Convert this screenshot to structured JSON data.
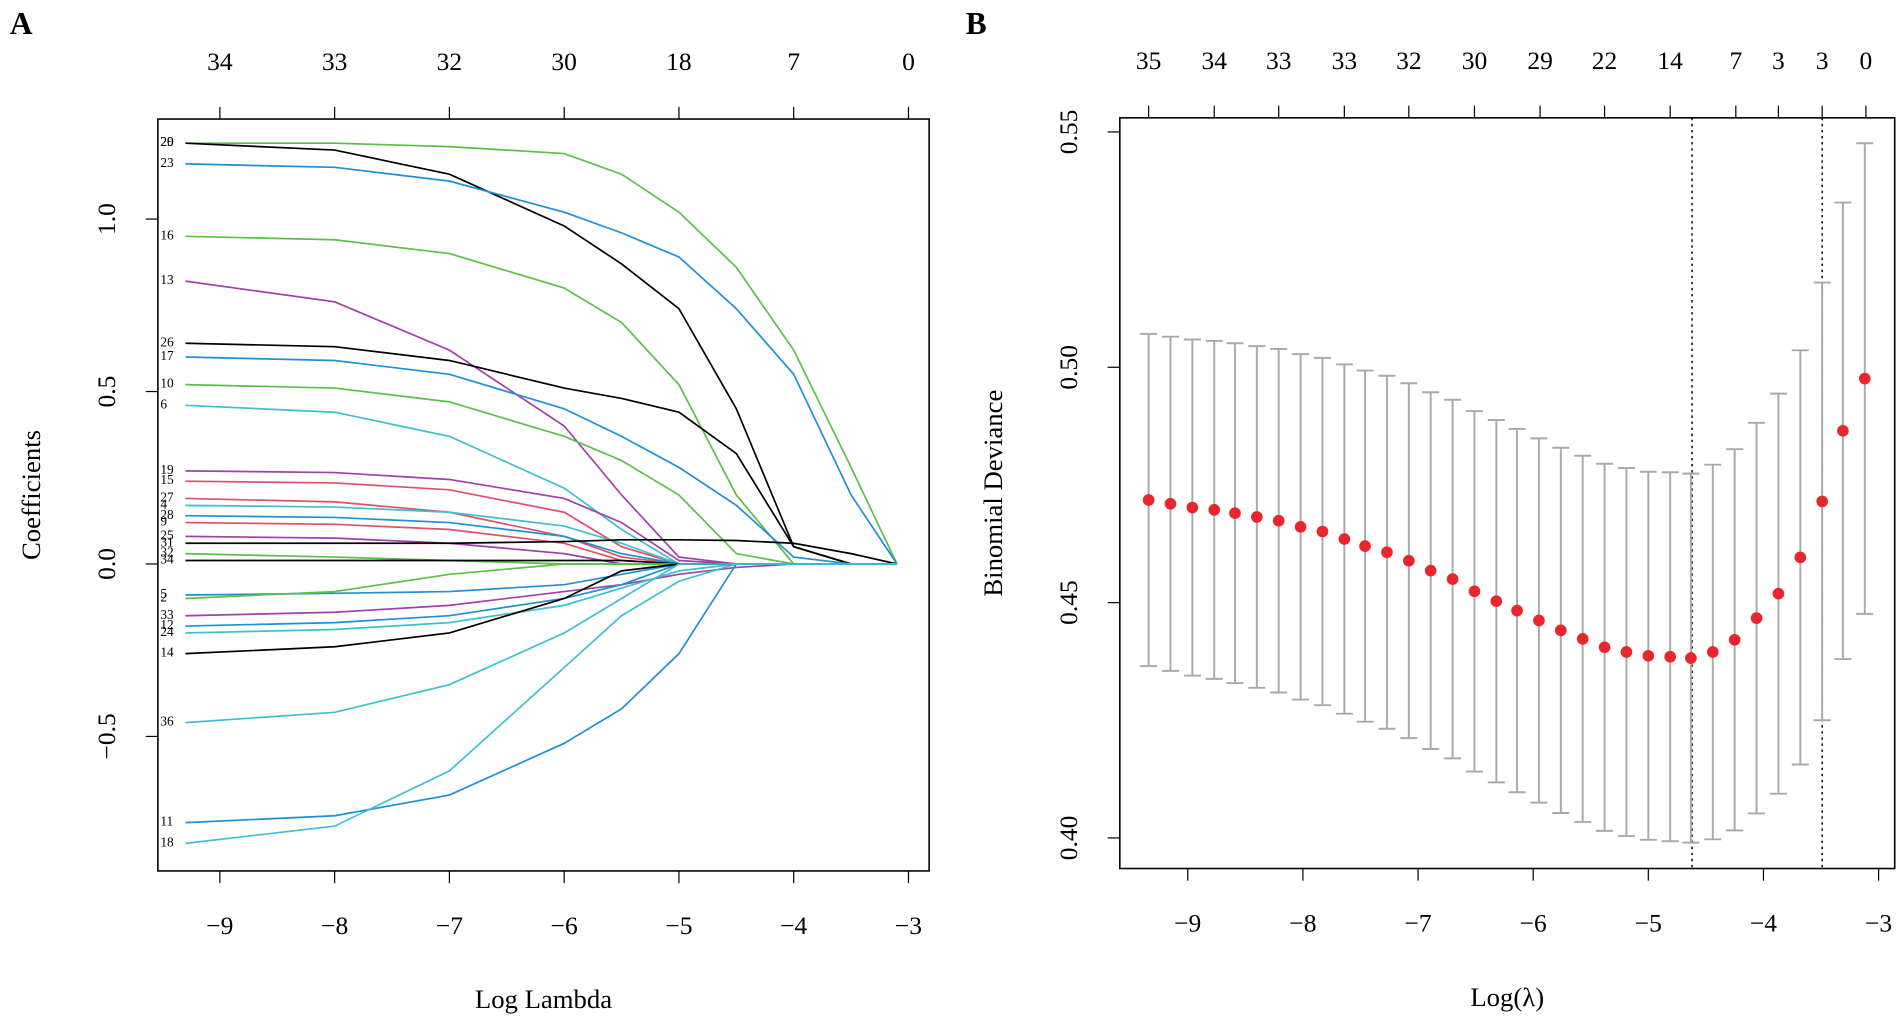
{
  "chart_data": [
    {
      "type": "line",
      "panel_label": "A",
      "xlabel": "Log Lambda",
      "ylabel": "Coefficients",
      "xlim": [
        -9.54,
        -2.82
      ],
      "ylim": [
        -0.89,
        1.29
      ],
      "xticks": [
        {
          "value": -9,
          "label": "−9"
        },
        {
          "value": -8,
          "label": "−8"
        },
        {
          "value": -7,
          "label": "−7"
        },
        {
          "value": -6,
          "label": "−6"
        },
        {
          "value": -5,
          "label": "−5"
        },
        {
          "value": -4,
          "label": "−4"
        },
        {
          "value": -3,
          "label": "−3"
        }
      ],
      "yticks": [
        {
          "value": -0.5,
          "label": "−0.5"
        },
        {
          "value": 0,
          "label": "0.0"
        },
        {
          "value": 0.5,
          "label": "0.5"
        },
        {
          "value": 1,
          "label": "1.0"
        }
      ],
      "top_xticks": [
        {
          "value": -9,
          "label": "34"
        },
        {
          "value": -8,
          "label": "33"
        },
        {
          "value": -7,
          "label": "32"
        },
        {
          "value": -6,
          "label": "30"
        },
        {
          "value": -5,
          "label": "18"
        },
        {
          "value": -4,
          "label": "7"
        },
        {
          "value": -3,
          "label": "0"
        }
      ],
      "x": [
        -9.3,
        -8,
        -7,
        -6,
        -5.5,
        -5,
        -4.5,
        -4,
        -3.5,
        -3.1
      ],
      "series": [
        {
          "name": "20",
          "color": "#5cbf4a",
          "values": [
            1.22,
            1.22,
            1.21,
            1.19,
            1.13,
            1.02,
            0.86,
            0.62,
            0.28,
            0
          ]
        },
        {
          "name": "29",
          "color": "#000000",
          "values": [
            1.22,
            1.2,
            1.13,
            0.98,
            0.87,
            0.74,
            0.45,
            0.05,
            0,
            0
          ]
        },
        {
          "name": "23",
          "color": "#1f8fd6",
          "values": [
            1.16,
            1.15,
            1.11,
            1.02,
            0.96,
            0.89,
            0.74,
            0.55,
            0.2,
            0
          ]
        },
        {
          "name": "16",
          "color": "#5cbf4a",
          "values": [
            0.95,
            0.94,
            0.9,
            0.8,
            0.7,
            0.52,
            0.2,
            0,
            0,
            0
          ]
        },
        {
          "name": "13",
          "color": "#a040a8",
          "values": [
            0.82,
            0.76,
            0.62,
            0.4,
            0.2,
            0.02,
            0,
            0,
            0,
            0
          ]
        },
        {
          "name": "26",
          "color": "#000000",
          "values": [
            0.64,
            0.63,
            0.59,
            0.51,
            0.48,
            0.44,
            0.32,
            0.05,
            0,
            0
          ]
        },
        {
          "name": "17",
          "color": "#1f8fd6",
          "values": [
            0.6,
            0.59,
            0.55,
            0.45,
            0.37,
            0.28,
            0.17,
            0.02,
            0,
            0
          ]
        },
        {
          "name": "10",
          "color": "#5cbf4a",
          "values": [
            0.52,
            0.51,
            0.47,
            0.37,
            0.3,
            0.2,
            0.03,
            0,
            0,
            0
          ]
        },
        {
          "name": "6",
          "color": "#3fbfcf",
          "values": [
            0.46,
            0.44,
            0.37,
            0.22,
            0.1,
            0,
            0,
            0,
            0,
            0
          ]
        },
        {
          "name": "19",
          "color": "#a040a8",
          "values": [
            0.27,
            0.265,
            0.245,
            0.19,
            0.12,
            0.01,
            0,
            0,
            0,
            0
          ]
        },
        {
          "name": "15",
          "color": "#e0506a",
          "values": [
            0.24,
            0.235,
            0.215,
            0.15,
            0.05,
            0,
            0,
            0,
            0,
            0
          ]
        },
        {
          "name": "27",
          "color": "#e0506a",
          "values": [
            0.19,
            0.18,
            0.15,
            0.08,
            0.02,
            0,
            0,
            0,
            0,
            0
          ]
        },
        {
          "name": "4",
          "color": "#3fbfcf",
          "values": [
            0.17,
            0.165,
            0.15,
            0.11,
            0.06,
            0,
            0,
            0,
            0,
            0
          ]
        },
        {
          "name": "28",
          "color": "#1f8fd6",
          "values": [
            0.14,
            0.135,
            0.12,
            0.08,
            0.03,
            0,
            0,
            0,
            0,
            0
          ]
        },
        {
          "name": "9",
          "color": "#e0506a",
          "values": [
            0.12,
            0.115,
            0.1,
            0.06,
            0.01,
            0,
            0,
            0,
            0,
            0
          ]
        },
        {
          "name": "25",
          "color": "#a040a8",
          "values": [
            0.08,
            0.075,
            0.06,
            0.03,
            0,
            0,
            0,
            0,
            0,
            0
          ]
        },
        {
          "name": "31",
          "color": "#000000",
          "values": [
            0.06,
            0.06,
            0.06,
            0.065,
            0.07,
            0.07,
            0.068,
            0.06,
            0.03,
            0
          ]
        },
        {
          "name": "32",
          "color": "#5cbf4a",
          "values": [
            0.03,
            0.02,
            0.01,
            0,
            0,
            0,
            0,
            0,
            0,
            0
          ]
        },
        {
          "name": "34",
          "color": "#000000",
          "values": [
            0.01,
            0.01,
            0.01,
            0.01,
            0.01,
            0,
            0,
            0,
            0,
            0
          ]
        },
        {
          "name": "5",
          "color": "#1f8fd6",
          "values": [
            -0.09,
            -0.085,
            -0.08,
            -0.06,
            -0.03,
            0,
            0,
            0,
            0,
            0
          ]
        },
        {
          "name": "2",
          "color": "#5cbf4a",
          "values": [
            -0.1,
            -0.08,
            -0.03,
            0,
            0,
            0,
            0,
            0,
            0,
            0
          ]
        },
        {
          "name": "33",
          "color": "#a040a8",
          "values": [
            -0.15,
            -0.14,
            -0.12,
            -0.08,
            -0.06,
            -0.03,
            -0.01,
            0,
            0,
            0
          ]
        },
        {
          "name": "12",
          "color": "#1f8fd6",
          "values": [
            -0.18,
            -0.17,
            -0.15,
            -0.1,
            -0.06,
            0,
            0,
            0,
            0,
            0
          ]
        },
        {
          "name": "24",
          "color": "#3fbfcf",
          "values": [
            -0.2,
            -0.19,
            -0.17,
            -0.12,
            -0.07,
            -0.02,
            0,
            0,
            0,
            0
          ]
        },
        {
          "name": "14",
          "color": "#000000",
          "values": [
            -0.26,
            -0.24,
            -0.2,
            -0.1,
            -0.02,
            0,
            0,
            0,
            0,
            0
          ]
        },
        {
          "name": "36",
          "color": "#3fbfcf",
          "values": [
            -0.46,
            -0.43,
            -0.35,
            -0.2,
            -0.1,
            0,
            0,
            0,
            0,
            0
          ]
        },
        {
          "name": "11",
          "color": "#1f8fd6",
          "values": [
            -0.75,
            -0.73,
            -0.67,
            -0.52,
            -0.42,
            -0.26,
            0,
            0,
            0,
            0
          ]
        },
        {
          "name": "18",
          "color": "#3fbfcf",
          "values": [
            -0.81,
            -0.76,
            -0.6,
            -0.3,
            -0.15,
            -0.05,
            0,
            0,
            0,
            0
          ]
        }
      ]
    },
    {
      "type": "errorbar",
      "panel_label": "B",
      "xlabel": "Log(λ)",
      "ylabel": "Binomial Deviance",
      "xlim": [
        -9.59,
        -2.86
      ],
      "ylim": [
        0.3935,
        0.553
      ],
      "xticks": [
        {
          "value": -9,
          "label": "−9"
        },
        {
          "value": -8,
          "label": "−8"
        },
        {
          "value": -7,
          "label": "−7"
        },
        {
          "value": -6,
          "label": "−6"
        },
        {
          "value": -5,
          "label": "−5"
        },
        {
          "value": -4,
          "label": "−4"
        },
        {
          "value": -3,
          "label": "−3"
        }
      ],
      "yticks": [
        {
          "value": 0.4,
          "label": "0.40"
        },
        {
          "value": 0.45,
          "label": "0.45"
        },
        {
          "value": 0.5,
          "label": "0.50"
        },
        {
          "value": 0.55,
          "label": "0.55"
        }
      ],
      "top_xticks": [
        {
          "value": -9.34,
          "label": "35"
        },
        {
          "value": -8.77,
          "label": "34"
        },
        {
          "value": -8.21,
          "label": "33"
        },
        {
          "value": -7.64,
          "label": "33"
        },
        {
          "value": -7.08,
          "label": "32"
        },
        {
          "value": -6.51,
          "label": "30"
        },
        {
          "value": -5.94,
          "label": "29"
        },
        {
          "value": -5.38,
          "label": "22"
        },
        {
          "value": -4.81,
          "label": "14"
        },
        {
          "value": -4.24,
          "label": "7"
        },
        {
          "value": -3.87,
          "label": "3"
        },
        {
          "value": -3.49,
          "label": "3"
        },
        {
          "value": -3.11,
          "label": "0"
        }
      ],
      "color": "#e8262c",
      "error_color": "#a9a9a9",
      "vlines": [
        -4.62,
        -3.49
      ],
      "x": [
        -9.34,
        -9.15,
        -8.96,
        -8.77,
        -8.59,
        -8.4,
        -8.21,
        -8.02,
        -7.83,
        -7.64,
        -7.46,
        -7.27,
        -7.08,
        -6.89,
        -6.7,
        -6.51,
        -6.32,
        -6.14,
        -5.95,
        -5.76,
        -5.57,
        -5.38,
        -5.19,
        -5.0,
        -4.81,
        -4.63,
        -4.44,
        -4.25,
        -4.06,
        -3.87,
        -3.68,
        -3.49,
        -3.31,
        -3.12
      ],
      "values": [
        0.4718,
        0.471,
        0.4702,
        0.4697,
        0.469,
        0.4682,
        0.4674,
        0.4661,
        0.4651,
        0.4635,
        0.462,
        0.4607,
        0.4589,
        0.4568,
        0.455,
        0.4524,
        0.4503,
        0.4483,
        0.4462,
        0.4441,
        0.4423,
        0.4405,
        0.4395,
        0.4387,
        0.4385,
        0.4382,
        0.4395,
        0.4421,
        0.4467,
        0.4519,
        0.4596,
        0.4715,
        0.4865,
        0.4976
      ],
      "errors": [
        0.0353,
        0.0355,
        0.0357,
        0.0359,
        0.0361,
        0.0363,
        0.0365,
        0.0367,
        0.0369,
        0.0371,
        0.0373,
        0.0375,
        0.0377,
        0.0379,
        0.0381,
        0.0383,
        0.0385,
        0.0386,
        0.0387,
        0.0388,
        0.0389,
        0.039,
        0.0391,
        0.0391,
        0.0392,
        0.0392,
        0.0398,
        0.0405,
        0.0415,
        0.0425,
        0.044,
        0.0465,
        0.0485,
        0.05
      ]
    }
  ]
}
